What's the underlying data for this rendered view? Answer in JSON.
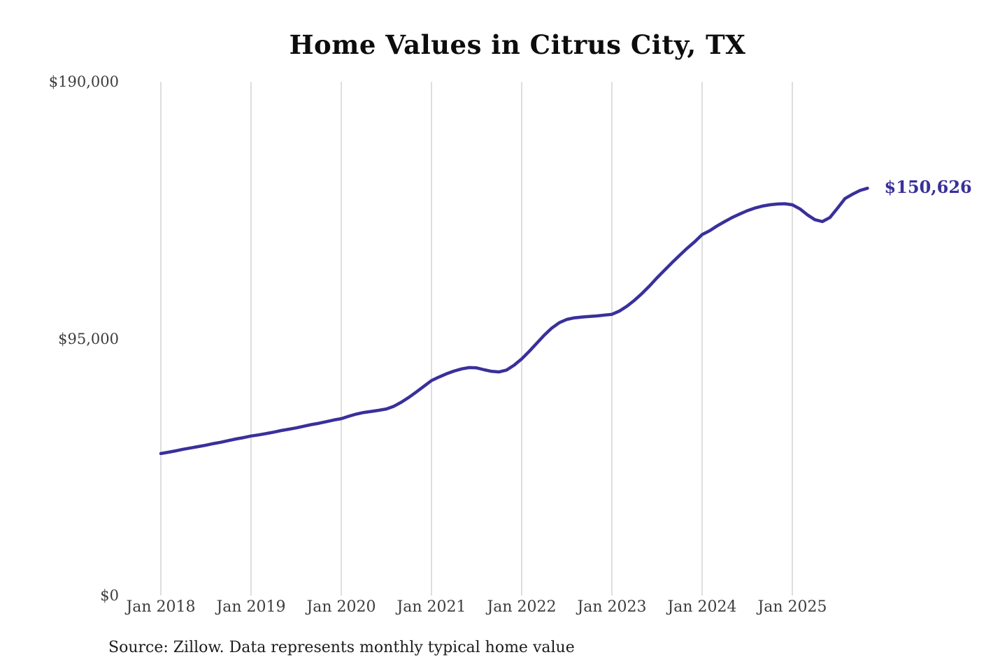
{
  "chart": {
    "title": "Home Values in Citrus City, TX",
    "source_note": "Source: Zillow. Data represents monthly typical home value",
    "end_label": "$150,626",
    "accent_color": "#39309b",
    "gridline_color": "#cccccc",
    "axis_text_color": "#3d3d3d"
  },
  "chart_data": {
    "type": "line",
    "title": "Home Values in Citrus City, TX",
    "series_name": "Monthly typical home value (USD)",
    "frequency": "monthly",
    "x_start": "2018-01",
    "x_end": "2025-11",
    "x_tick_labels": [
      "Jan 2018",
      "Jan 2019",
      "Jan 2020",
      "Jan 2021",
      "Jan 2022",
      "Jan 2023",
      "Jan 2024",
      "Jan 2025"
    ],
    "y_ticks": [
      {
        "label": "$0",
        "value": 0
      },
      {
        "label": "$95,000",
        "value": 95000
      },
      {
        "label": "$190,000",
        "value": 190000
      }
    ],
    "ylim": [
      0,
      190000
    ],
    "grid": "vertical-only",
    "legend": "none",
    "end_value": 150626,
    "values": [
      52500,
      53000,
      53500,
      54100,
      54600,
      55100,
      55600,
      56200,
      56700,
      57300,
      57900,
      58400,
      59000,
      59400,
      59900,
      60400,
      61000,
      61500,
      62000,
      62600,
      63200,
      63700,
      64300,
      64900,
      65400,
      66300,
      67100,
      67700,
      68100,
      68500,
      69000,
      70000,
      71500,
      73300,
      75300,
      77400,
      79500,
      80800,
      82000,
      83000,
      83800,
      84300,
      84200,
      83500,
      82900,
      82700,
      83400,
      85200,
      87500,
      90300,
      93300,
      96300,
      98900,
      100900,
      102100,
      102700,
      103000,
      103200,
      103400,
      103700,
      104000,
      105200,
      107000,
      109200,
      111700,
      114500,
      117500,
      120300,
      123100,
      125800,
      128400,
      130800,
      133500,
      134900,
      136700,
      138300,
      139800,
      141100,
      142300,
      143300,
      144000,
      144500,
      144800,
      144900,
      144500,
      143000,
      140800,
      139000,
      138300,
      139800,
      143200,
      146800,
      148400,
      149800,
      150626
    ]
  }
}
